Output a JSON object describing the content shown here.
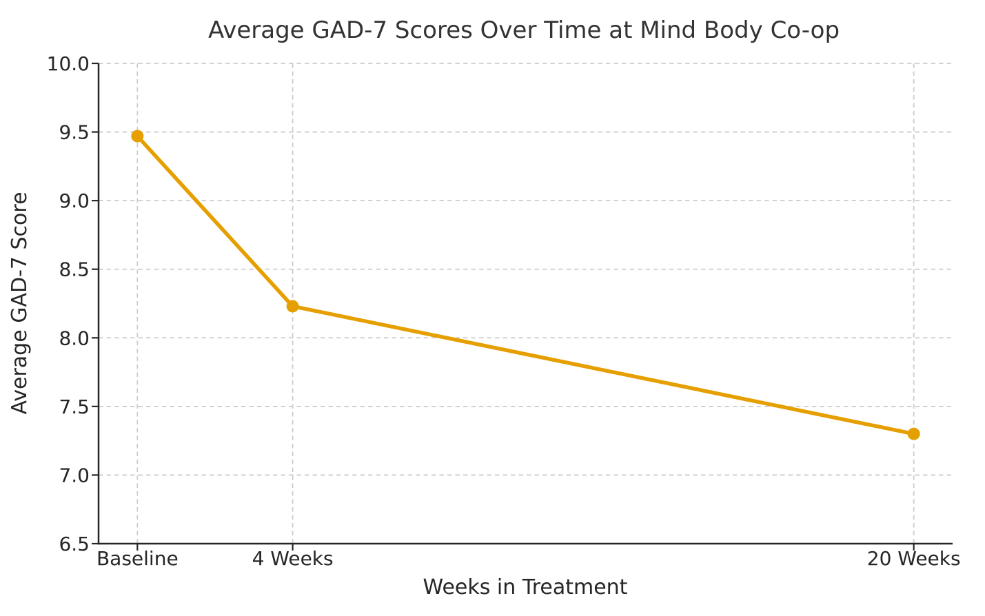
{
  "chart_data": {
    "type": "line",
    "title": "Average GAD-7 Scores Over Time at Mind Body Co-op",
    "xlabel": "Weeks in Treatment",
    "ylabel": "Average GAD-7 Score",
    "categories": [
      "Baseline",
      "4 Weeks",
      "20 Weeks"
    ],
    "x": [
      0,
      4,
      20
    ],
    "series": [
      {
        "name": "Average GAD-7 Score",
        "values": [
          9.47,
          8.23,
          7.3
        ]
      }
    ],
    "yticks": [
      6.5,
      7.0,
      7.5,
      8.0,
      8.5,
      9.0,
      9.5,
      10.0
    ],
    "ytick_labels": [
      "6.5",
      "7.0",
      "7.5",
      "8.0",
      "8.5",
      "9.0",
      "9.5",
      "10.0"
    ],
    "ylim": [
      6.5,
      10.0
    ],
    "xlim": [
      -1,
      21
    ],
    "grid": "dashed light-gray gridlines at all x and y ticks",
    "legend": "none",
    "spines": "left and bottom only",
    "marker": "filled circle",
    "colors": {
      "line": "#E69F00",
      "marker": "#E69F00",
      "grid": "#cccccc",
      "spine": "#262626",
      "tick": "#262626",
      "text": "#262626",
      "title_text": "#333333",
      "background": "#ffffff"
    }
  }
}
